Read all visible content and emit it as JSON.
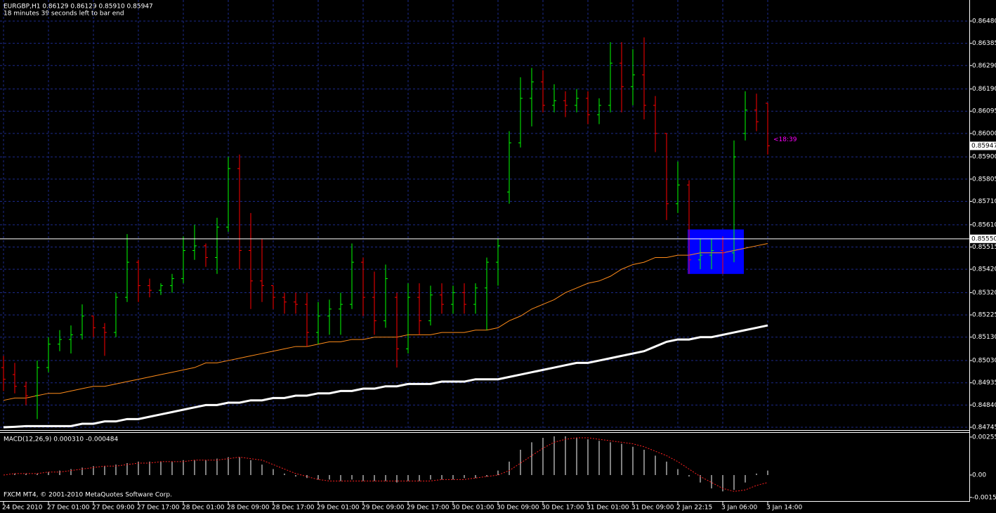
{
  "chart_data": [
    {
      "type": "ohlc",
      "title": "EURGBP,H1  0.86129 0.86129 0.85910 0.85947",
      "subtitle": "18 minutes 39 seconds left to bar end",
      "categories": [
        "24 Dec 2010",
        null,
        null,
        null,
        "27 Dec 01:00",
        null,
        null,
        null,
        "27 Dec 09:00",
        null,
        null,
        null,
        "27 Dec 17:00",
        null,
        null,
        null,
        "28 Dec 01:00",
        null,
        null,
        null,
        "28 Dec 09:00",
        null,
        null,
        null,
        "28 Dec 17:00",
        null,
        null,
        null,
        "29 Dec 01:00",
        null,
        null,
        null,
        "29 Dec 09:00",
        null,
        null,
        null,
        "29 Dec 17:00",
        null,
        null,
        null,
        "30 Dec 01:00",
        null,
        null,
        null,
        "30 Dec 09:00",
        null,
        null,
        null,
        "30 Dec 17:00",
        null,
        null,
        null,
        "31 Dec 01:00",
        null,
        null,
        null,
        "31 Dec 09:00",
        null,
        null,
        null,
        "2 Jan 22:15",
        null,
        null,
        null,
        "3 Jan 06:00",
        null,
        null,
        null,
        "3 Jan 14:00"
      ],
      "open": [
        0.85,
        0.8497,
        0.8492,
        0.8488,
        0.85,
        0.851,
        0.8512,
        0.8514,
        0.8522,
        0.8517,
        0.8515,
        0.853,
        0.8545,
        0.8535,
        0.8533,
        0.8535,
        0.8538,
        0.855,
        0.8552,
        0.8547,
        0.856,
        0.8585,
        0.855,
        0.8537,
        0.8535,
        0.853,
        0.8528,
        0.8527,
        0.8515,
        0.8522,
        0.8525,
        0.8527,
        0.8545,
        0.853,
        0.852,
        0.853,
        0.8508,
        0.853,
        0.852,
        0.8531,
        0.8527,
        0.8532,
        0.8527,
        0.8534,
        0.8545,
        0.8575,
        0.8596,
        0.8615,
        0.8622,
        0.8612,
        0.8614,
        0.8612,
        0.8615,
        0.8608,
        0.8612,
        0.863,
        0.862,
        0.8625,
        0.8612,
        0.86,
        0.857,
        0.8578,
        0.8546,
        0.8548,
        0.855,
        0.8549,
        0.86,
        0.861,
        0.86129
      ],
      "high": [
        0.8505,
        0.8502,
        0.8494,
        0.8503,
        0.8513,
        0.8516,
        0.8518,
        0.8527,
        0.8522,
        0.8519,
        0.8532,
        0.8557,
        0.8546,
        0.8538,
        0.8536,
        0.854,
        0.8556,
        0.8561,
        0.8553,
        0.8564,
        0.859,
        0.8591,
        0.8566,
        0.8555,
        0.8535,
        0.8532,
        0.8532,
        0.8532,
        0.8528,
        0.8529,
        0.8532,
        0.8553,
        0.8547,
        0.8541,
        0.8544,
        0.8532,
        0.8536,
        0.8536,
        0.8535,
        0.8536,
        0.8535,
        0.8536,
        0.8536,
        0.8547,
        0.8555,
        0.8601,
        0.8624,
        0.8628,
        0.8627,
        0.8621,
        0.8618,
        0.8619,
        0.8618,
        0.8615,
        0.8639,
        0.8639,
        0.8636,
        0.8641,
        0.8616,
        0.86,
        0.8588,
        0.858,
        0.8555,
        0.8555,
        0.8556,
        0.8597,
        0.8618,
        0.8617,
        0.86129
      ],
      "low": [
        0.849,
        0.8489,
        0.8484,
        0.8478,
        0.8498,
        0.8507,
        0.8506,
        0.8512,
        0.8513,
        0.8505,
        0.8513,
        0.8528,
        0.8528,
        0.853,
        0.8531,
        0.8532,
        0.8536,
        0.8546,
        0.8543,
        0.854,
        0.8558,
        0.8542,
        0.8525,
        0.8528,
        0.8525,
        0.8523,
        0.8523,
        0.8509,
        0.851,
        0.8514,
        0.8514,
        0.8525,
        0.8522,
        0.8514,
        0.8517,
        0.85,
        0.8506,
        0.8514,
        0.8518,
        0.8523,
        0.8523,
        0.8523,
        0.8523,
        0.8516,
        0.8535,
        0.857,
        0.8594,
        0.8603,
        0.8609,
        0.8609,
        0.8607,
        0.8609,
        0.8604,
        0.8604,
        0.8609,
        0.8609,
        0.8612,
        0.8606,
        0.8592,
        0.8563,
        0.8566,
        0.854,
        0.8542,
        0.8542,
        0.854,
        0.8545,
        0.8597,
        0.8601,
        0.8591
      ],
      "close": [
        0.8495,
        0.8492,
        0.8488,
        0.85,
        0.851,
        0.8512,
        0.8514,
        0.8522,
        0.8517,
        0.8515,
        0.853,
        0.8545,
        0.8535,
        0.8533,
        0.8535,
        0.8538,
        0.855,
        0.8552,
        0.8547,
        0.856,
        0.8585,
        0.855,
        0.8537,
        0.8535,
        0.853,
        0.8528,
        0.8527,
        0.8515,
        0.8522,
        0.8525,
        0.8527,
        0.8545,
        0.853,
        0.852,
        0.8538,
        0.8508,
        0.853,
        0.852,
        0.8531,
        0.8527,
        0.8532,
        0.8527,
        0.8534,
        0.8545,
        0.8552,
        0.8596,
        0.8615,
        0.8622,
        0.8612,
        0.8614,
        0.8612,
        0.8615,
        0.8608,
        0.8612,
        0.863,
        0.862,
        0.8625,
        0.8612,
        0.86,
        0.857,
        0.8578,
        0.8546,
        0.8548,
        0.855,
        0.8549,
        0.859,
        0.861,
        0.8605,
        0.85947
      ],
      "up_color": "#00ff00",
      "down_color": "#ff0000",
      "moving_averages": [
        {
          "color": "#ff8c1a",
          "values": [
            0.8486,
            0.8487,
            0.8487,
            0.8488,
            0.8489,
            0.8489,
            0.849,
            0.8491,
            0.8492,
            0.8492,
            0.8493,
            0.8494,
            0.8495,
            0.8496,
            0.8497,
            0.8498,
            0.8499,
            0.85,
            0.8502,
            0.8502,
            0.8503,
            0.8504,
            0.8505,
            0.8506,
            0.8507,
            0.8508,
            0.8509,
            0.8509,
            0.851,
            0.8511,
            0.8511,
            0.8512,
            0.8512,
            0.8513,
            0.8513,
            0.8513,
            0.8514,
            0.8514,
            0.8514,
            0.8515,
            0.8515,
            0.8515,
            0.8516,
            0.8516,
            0.8517,
            0.852,
            0.8522,
            0.8525,
            0.8527,
            0.8529,
            0.8532,
            0.8534,
            0.8536,
            0.8537,
            0.8539,
            0.8542,
            0.8544,
            0.8545,
            0.8547,
            0.8547,
            0.8548,
            0.8548,
            0.8549,
            0.8549,
            0.8549,
            0.855,
            0.8551,
            0.8552,
            0.8553
          ]
        },
        {
          "color": "#ffffff",
          "values": [
            0.84745,
            0.84747,
            0.8475,
            0.8475,
            0.8475,
            0.8475,
            0.8475,
            0.8476,
            0.8476,
            0.8477,
            0.8477,
            0.8478,
            0.8478,
            0.8479,
            0.848,
            0.8481,
            0.8482,
            0.8483,
            0.8484,
            0.8484,
            0.8485,
            0.8485,
            0.8486,
            0.8486,
            0.8487,
            0.8487,
            0.8488,
            0.8488,
            0.8489,
            0.8489,
            0.849,
            0.849,
            0.8491,
            0.8491,
            0.8492,
            0.8492,
            0.8493,
            0.8493,
            0.8493,
            0.8494,
            0.8494,
            0.8494,
            0.8495,
            0.8495,
            0.8495,
            0.8496,
            0.8497,
            0.8498,
            0.8499,
            0.85,
            0.8501,
            0.8502,
            0.8502,
            0.8503,
            0.8504,
            0.8505,
            0.8506,
            0.8507,
            0.8509,
            0.8511,
            0.8512,
            0.8512,
            0.8513,
            0.8513,
            0.8514,
            0.8515,
            0.8516,
            0.8517,
            0.8518
          ]
        }
      ],
      "price_line": {
        "value": 0.8555,
        "label": "0.85550"
      },
      "current_price": {
        "value": 0.85947,
        "label": "0.85947"
      },
      "countdown": "<18:39",
      "highlight": {
        "from": 61,
        "to": 66,
        "top": 0.8559,
        "bottom": 0.854,
        "color": "#0000ff"
      },
      "ylim": [
        0.84733,
        0.86558
      ],
      "yticks": [
        {
          "value": 0.8648,
          "label": "0.86480"
        },
        {
          "value": 0.86385,
          "label": "0.86385"
        },
        {
          "value": 0.8629,
          "label": "0.86290"
        },
        {
          "value": 0.8619,
          "label": "0.86190"
        },
        {
          "value": 0.86095,
          "label": "0.86095"
        },
        {
          "value": 0.86,
          "label": "0.86000"
        },
        {
          "value": 0.859,
          "label": "0.85900"
        },
        {
          "value": 0.85805,
          "label": "0.85805"
        },
        {
          "value": 0.8571,
          "label": "0.85710"
        },
        {
          "value": 0.8561,
          "label": "0.85610"
        },
        {
          "value": 0.85515,
          "label": "0.85515"
        },
        {
          "value": 0.8542,
          "label": "0.85420"
        },
        {
          "value": 0.8532,
          "label": "0.85320"
        },
        {
          "value": 0.85225,
          "label": "0.85225"
        },
        {
          "value": 0.8513,
          "label": "0.85130"
        },
        {
          "value": 0.8503,
          "label": "0.85030"
        },
        {
          "value": 0.84935,
          "label": "0.84935"
        },
        {
          "value": 0.8484,
          "label": "0.84840"
        },
        {
          "value": 0.84745,
          "label": "0.84745"
        }
      ],
      "grid": true
    },
    {
      "type": "macd",
      "title": "MACD(12,26,9) 0.000310 -0.000484",
      "annotation": "FXCM MT4, © 2001-2010 MetaQuotes Software Corp.",
      "histogram": {
        "color": "#ffffff",
        "values": [
          0,
          0.0001,
          0.0001,
          0.0001,
          0.0002,
          0.0003,
          0.0004,
          0.0005,
          0.0006,
          0.0006,
          0.0007,
          0.0008,
          0.0009,
          0.0009,
          0.0009,
          0.0009,
          0.001,
          0.001,
          0.001,
          0.0011,
          0.0012,
          0.0012,
          0.001,
          0.0007,
          0.0004,
          0.0001,
          -0.0001,
          -0.0002,
          -0.0003,
          -0.0003,
          -0.0004,
          -0.0003,
          -0.0004,
          -0.0004,
          -0.0004,
          -0.0005,
          -0.0004,
          -0.0004,
          -0.0003,
          -0.0003,
          -0.0003,
          -0.0002,
          -0.0002,
          -0.0001,
          0.0003,
          0.0009,
          0.0017,
          0.0022,
          0.0025,
          0.0026,
          0.0026,
          0.0025,
          0.0024,
          0.0023,
          0.0022,
          0.0021,
          0.0019,
          0.0017,
          0.0013,
          0.0009,
          0.0004,
          -0.0001,
          -0.0005,
          -0.0009,
          -0.0011,
          -0.001,
          -0.0005,
          0.0001,
          0.0003
        ]
      },
      "signal": {
        "color": "#ff2020",
        "values": [
          0,
          0.0001,
          0.0001,
          0.0001,
          0.0002,
          0.0002,
          0.0003,
          0.0004,
          0.0005,
          0.0006,
          0.0006,
          0.0007,
          0.0008,
          0.0008,
          0.0009,
          0.0009,
          0.0009,
          0.001,
          0.001,
          0.001,
          0.0011,
          0.0012,
          0.0011,
          0.001,
          0.0007,
          0.0004,
          0.0001,
          -0.0001,
          -0.0003,
          -0.0004,
          -0.0004,
          -0.0004,
          -0.0004,
          -0.0004,
          -0.0004,
          -0.0004,
          -0.0004,
          -0.0004,
          -0.0004,
          -0.0003,
          -0.0003,
          -0.0003,
          -0.0002,
          -0.0001,
          0,
          0.0003,
          0.0008,
          0.0013,
          0.0018,
          0.0022,
          0.0024,
          0.0025,
          0.0025,
          0.0024,
          0.0023,
          0.0022,
          0.0021,
          0.0019,
          0.0016,
          0.0013,
          0.0009,
          0.0004,
          -0.0001,
          -0.0005,
          -0.0009,
          -0.0011,
          -0.001,
          -0.0007,
          -0.0005
        ]
      },
      "ylim": [
        -0.0017,
        0.00283
      ],
      "yticks": [
        {
          "value": 0.00255,
          "label": "0.00255"
        },
        {
          "value": 0,
          "label": "0.00"
        },
        {
          "value": -0.0015,
          "label": "-0.00150"
        }
      ]
    }
  ]
}
